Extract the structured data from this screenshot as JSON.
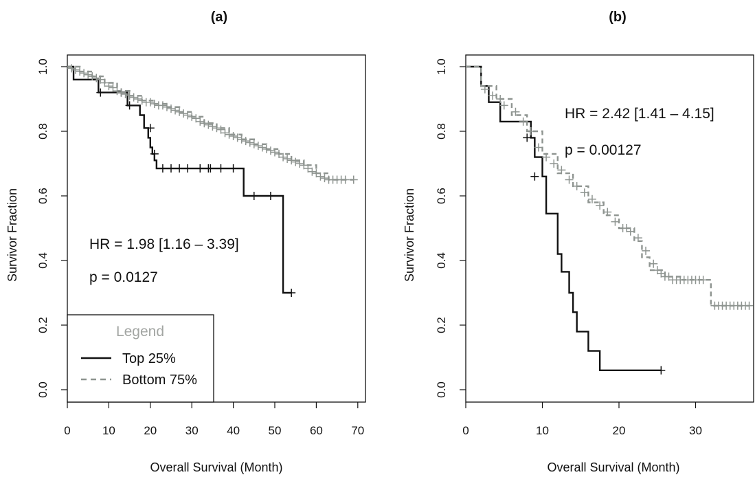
{
  "chart_data": [
    {
      "type": "line",
      "title": "(a)",
      "xlabel": "Overall Survival (Month)",
      "ylabel": "Survivor Fraction",
      "xlim": [
        0,
        70
      ],
      "ylim": [
        0,
        1
      ],
      "xticks": [
        "0",
        "10",
        "20",
        "30",
        "40",
        "50",
        "60",
        "70"
      ],
      "yticks": [
        "0.0",
        "0.2",
        "0.4",
        "0.6",
        "0.8",
        "1.0"
      ],
      "annotations": [
        "HR = 1.98  [1.16 – 3.39]",
        "p = 0.0127"
      ],
      "legend": {
        "title": "Legend",
        "position": "bottom-left",
        "entries": [
          "Top 25%",
          "Bottom 75%"
        ]
      },
      "series": [
        {
          "name": "Top 25%",
          "color": "#111111",
          "style": "solid",
          "x": [
            0,
            1.5,
            4,
            7.5,
            12.5,
            14.5,
            17.5,
            18.5,
            19.5,
            20,
            20.5,
            21,
            21.5,
            42.5,
            52,
            54
          ],
          "y": [
            1.0,
            0.96,
            0.96,
            0.92,
            0.92,
            0.88,
            0.85,
            0.81,
            0.78,
            0.75,
            0.73,
            0.71,
            0.685,
            0.6,
            0.3,
            0.3
          ],
          "censor_x": [
            8,
            13,
            15,
            20,
            21,
            23,
            25,
            27,
            29,
            32,
            34,
            34.5,
            37,
            40,
            45,
            49,
            54
          ],
          "censor_y": [
            0.92,
            0.92,
            0.88,
            0.81,
            0.73,
            0.685,
            0.685,
            0.685,
            0.685,
            0.685,
            0.685,
            0.685,
            0.685,
            0.685,
            0.6,
            0.6,
            0.3
          ]
        },
        {
          "name": "Bottom 75%",
          "color": "#8e9490",
          "style": "dashed",
          "x": [
            0,
            3,
            6,
            9,
            12,
            15,
            18,
            21,
            24,
            27,
            30,
            33,
            36,
            39,
            42,
            45,
            48,
            51,
            54,
            57,
            60,
            63,
            66,
            69
          ],
          "y": [
            1.0,
            0.985,
            0.97,
            0.95,
            0.925,
            0.91,
            0.895,
            0.885,
            0.875,
            0.86,
            0.845,
            0.825,
            0.81,
            0.79,
            0.775,
            0.76,
            0.745,
            0.73,
            0.71,
            0.695,
            0.67,
            0.65,
            0.65,
            0.65
          ],
          "censor_x": [
            1,
            2,
            3,
            4,
            5,
            6,
            7,
            8,
            9,
            10,
            11,
            12,
            13,
            14,
            15,
            16,
            17,
            18,
            19,
            20,
            21,
            22,
            23,
            24,
            25,
            26,
            27,
            28,
            29,
            30,
            31,
            32,
            33,
            34,
            35,
            36,
            37,
            38,
            39,
            40,
            41,
            42,
            43,
            44,
            45,
            46,
            47,
            48,
            49,
            50,
            51,
            52,
            53,
            54,
            55,
            56,
            57,
            58,
            59,
            60,
            61,
            62,
            63,
            64,
            65,
            66,
            67,
            69
          ],
          "censor_y": [
            0.995,
            0.99,
            0.985,
            0.98,
            0.975,
            0.97,
            0.965,
            0.96,
            0.95,
            0.94,
            0.935,
            0.925,
            0.92,
            0.915,
            0.91,
            0.905,
            0.9,
            0.895,
            0.89,
            0.89,
            0.885,
            0.88,
            0.88,
            0.875,
            0.87,
            0.865,
            0.86,
            0.855,
            0.85,
            0.845,
            0.84,
            0.83,
            0.825,
            0.82,
            0.815,
            0.81,
            0.805,
            0.795,
            0.79,
            0.785,
            0.78,
            0.775,
            0.77,
            0.765,
            0.76,
            0.755,
            0.75,
            0.745,
            0.74,
            0.735,
            0.73,
            0.72,
            0.715,
            0.71,
            0.705,
            0.7,
            0.695,
            0.685,
            0.675,
            0.67,
            0.66,
            0.655,
            0.65,
            0.65,
            0.65,
            0.65,
            0.65,
            0.65
          ]
        }
      ]
    },
    {
      "type": "line",
      "title": "(b)",
      "xlabel": "Overall Survival (Month)",
      "ylabel": "Survivor Fraction",
      "xlim": [
        0,
        37
      ],
      "ylim": [
        0,
        1
      ],
      "xticks": [
        "0",
        "10",
        "20",
        "30"
      ],
      "yticks": [
        "0.0",
        "0.2",
        "0.4",
        "0.6",
        "0.8",
        "1.0"
      ],
      "annotations": [
        "HR = 2.42  [1.41 – 4.15]",
        "p = 0.00127"
      ],
      "series": [
        {
          "name": "Top 25%",
          "color": "#111111",
          "style": "solid",
          "x": [
            0,
            2,
            3,
            4.5,
            7,
            8.5,
            9,
            10,
            10.5,
            11.5,
            12,
            12.5,
            13.5,
            14,
            14.5,
            16,
            17.5,
            25.5
          ],
          "y": [
            1.0,
            0.94,
            0.89,
            0.83,
            0.83,
            0.78,
            0.72,
            0.66,
            0.545,
            0.545,
            0.42,
            0.365,
            0.3,
            0.24,
            0.18,
            0.12,
            0.06,
            0.06
          ],
          "censor_x": [
            8,
            9,
            25.5
          ],
          "censor_y": [
            0.78,
            0.66,
            0.06
          ]
        },
        {
          "name": "Bottom 75%",
          "color": "#8e9490",
          "style": "dashed",
          "x": [
            0,
            2,
            4,
            6,
            8,
            10,
            12,
            14,
            16,
            18,
            20,
            22,
            23,
            24,
            26,
            28,
            30,
            31,
            32,
            37
          ],
          "y": [
            1.0,
            0.94,
            0.9,
            0.85,
            0.8,
            0.73,
            0.67,
            0.63,
            0.58,
            0.54,
            0.5,
            0.46,
            0.41,
            0.37,
            0.35,
            0.34,
            0.34,
            0.34,
            0.26,
            0.26
          ],
          "censor_x": [
            2.5,
            3.5,
            4.5,
            5,
            6.5,
            7.5,
            8.5,
            9.5,
            10.5,
            11.5,
            12.5,
            13.5,
            14.5,
            15.5,
            16.5,
            17.5,
            18.5,
            19.5,
            20.5,
            21,
            21.5,
            22.5,
            23.5,
            24.5,
            25,
            25.5,
            26,
            26.5,
            27,
            27.5,
            28,
            28.5,
            29,
            29.5,
            30,
            30.5,
            31,
            32.5,
            33,
            33.5,
            34,
            34.5,
            35,
            35.5,
            36,
            36.5,
            37
          ],
          "censor_y": [
            0.93,
            0.91,
            0.9,
            0.88,
            0.86,
            0.83,
            0.8,
            0.75,
            0.72,
            0.7,
            0.68,
            0.65,
            0.63,
            0.61,
            0.59,
            0.57,
            0.55,
            0.52,
            0.5,
            0.5,
            0.49,
            0.47,
            0.43,
            0.39,
            0.37,
            0.36,
            0.35,
            0.35,
            0.34,
            0.34,
            0.34,
            0.34,
            0.34,
            0.34,
            0.34,
            0.34,
            0.34,
            0.26,
            0.26,
            0.26,
            0.26,
            0.26,
            0.26,
            0.26,
            0.26,
            0.26,
            0.26
          ]
        }
      ]
    }
  ]
}
